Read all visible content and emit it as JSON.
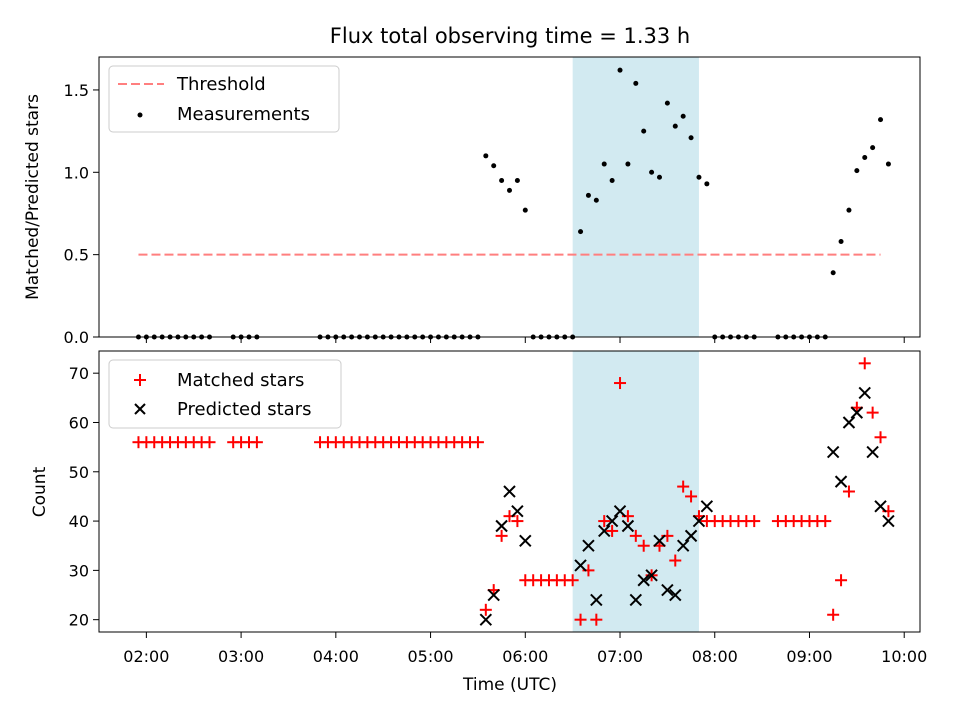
{
  "title": "Flux total observing time = 1.33 h",
  "xlabel": "Time (UTC)",
  "highlight": {
    "start": "06:30",
    "end": "07:50",
    "color": "#add8e6"
  },
  "chart_data": [
    {
      "type": "scatter",
      "ylabel": "Matched/Predicted stars",
      "ylim": [
        0,
        1.7
      ],
      "yticks": [
        "0.0",
        "0.5",
        "1.0",
        "1.5"
      ],
      "legend": {
        "placement": "upper-left",
        "entries": [
          {
            "label": "Threshold",
            "marker": "dashed-line",
            "color": "#ff7f7f"
          },
          {
            "label": "Measurements",
            "marker": "dot",
            "color": "#000000"
          }
        ]
      },
      "threshold": {
        "value": 0.5,
        "x_start": "01:55",
        "x_end": "09:45",
        "color": "#ff7f7f"
      },
      "series": [
        {
          "name": "Measurements",
          "color": "#000000",
          "points": [
            [
              "01:55",
              0
            ],
            [
              "02:00",
              0
            ],
            [
              "02:05",
              0
            ],
            [
              "02:10",
              0
            ],
            [
              "02:15",
              0
            ],
            [
              "02:20",
              0
            ],
            [
              "02:25",
              0
            ],
            [
              "02:30",
              0
            ],
            [
              "02:35",
              0
            ],
            [
              "02:40",
              0
            ],
            [
              "02:55",
              0
            ],
            [
              "03:00",
              0
            ],
            [
              "03:05",
              0
            ],
            [
              "03:10",
              0
            ],
            [
              "03:50",
              0
            ],
            [
              "03:55",
              0
            ],
            [
              "04:00",
              0
            ],
            [
              "04:05",
              0
            ],
            [
              "04:10",
              0
            ],
            [
              "04:15",
              0
            ],
            [
              "04:20",
              0
            ],
            [
              "04:25",
              0
            ],
            [
              "04:30",
              0
            ],
            [
              "04:35",
              0
            ],
            [
              "04:40",
              0
            ],
            [
              "04:45",
              0
            ],
            [
              "04:50",
              0
            ],
            [
              "04:55",
              0
            ],
            [
              "05:00",
              0
            ],
            [
              "05:05",
              0
            ],
            [
              "05:10",
              0
            ],
            [
              "05:15",
              0
            ],
            [
              "05:20",
              0
            ],
            [
              "05:25",
              0
            ],
            [
              "05:30",
              0
            ],
            [
              "05:35",
              1.1
            ],
            [
              "05:40",
              1.04
            ],
            [
              "05:45",
              0.95
            ],
            [
              "05:50",
              0.89
            ],
            [
              "05:55",
              0.95
            ],
            [
              "06:00",
              0.77
            ],
            [
              "06:05",
              0
            ],
            [
              "06:10",
              0
            ],
            [
              "06:15",
              0
            ],
            [
              "06:20",
              0
            ],
            [
              "06:25",
              0
            ],
            [
              "06:30",
              0
            ],
            [
              "06:35",
              0.64
            ],
            [
              "06:40",
              0.86
            ],
            [
              "06:45",
              0.83
            ],
            [
              "06:50",
              1.05
            ],
            [
              "06:55",
              0.95
            ],
            [
              "07:00",
              1.62
            ],
            [
              "07:05",
              1.05
            ],
            [
              "07:10",
              1.54
            ],
            [
              "07:15",
              1.25
            ],
            [
              "07:20",
              1.0
            ],
            [
              "07:25",
              0.97
            ],
            [
              "07:30",
              1.42
            ],
            [
              "07:35",
              1.28
            ],
            [
              "07:40",
              1.34
            ],
            [
              "07:45",
              1.21
            ],
            [
              "07:50",
              0.97
            ],
            [
              "07:55",
              0.93
            ],
            [
              "08:00",
              0
            ],
            [
              "08:05",
              0
            ],
            [
              "08:10",
              0
            ],
            [
              "08:15",
              0
            ],
            [
              "08:20",
              0
            ],
            [
              "08:25",
              0
            ],
            [
              "08:40",
              0
            ],
            [
              "08:45",
              0
            ],
            [
              "08:50",
              0
            ],
            [
              "08:55",
              0
            ],
            [
              "09:00",
              0
            ],
            [
              "09:05",
              0
            ],
            [
              "09:10",
              0
            ],
            [
              "09:15",
              0.39
            ],
            [
              "09:20",
              0.58
            ],
            [
              "09:25",
              0.77
            ],
            [
              "09:30",
              1.01
            ],
            [
              "09:35",
              1.09
            ],
            [
              "09:40",
              1.15
            ],
            [
              "09:45",
              1.32
            ],
            [
              "09:50",
              1.05
            ]
          ]
        }
      ]
    },
    {
      "type": "scatter",
      "ylabel": "Count",
      "ylim": [
        17.5,
        74.5
      ],
      "yticks": [
        "20",
        "30",
        "40",
        "50",
        "60",
        "70"
      ],
      "xticks": [
        "02:00",
        "03:00",
        "04:00",
        "05:00",
        "06:00",
        "07:00",
        "08:00",
        "09:00",
        "10:00"
      ],
      "xlim": [
        "01:30",
        "10:10"
      ],
      "legend": {
        "placement": "upper-left",
        "entries": [
          {
            "label": "Matched stars",
            "marker": "plus",
            "color": "#ff0000"
          },
          {
            "label": "Predicted stars",
            "marker": "x",
            "color": "#000000"
          }
        ]
      },
      "series": [
        {
          "name": "Matched stars",
          "color": "#ff0000",
          "marker": "plus",
          "points": [
            [
              "01:55",
              56
            ],
            [
              "02:00",
              56
            ],
            [
              "02:05",
              56
            ],
            [
              "02:10",
              56
            ],
            [
              "02:15",
              56
            ],
            [
              "02:20",
              56
            ],
            [
              "02:25",
              56
            ],
            [
              "02:30",
              56
            ],
            [
              "02:35",
              56
            ],
            [
              "02:40",
              56
            ],
            [
              "02:55",
              56
            ],
            [
              "03:00",
              56
            ],
            [
              "03:05",
              56
            ],
            [
              "03:10",
              56
            ],
            [
              "03:50",
              56
            ],
            [
              "03:55",
              56
            ],
            [
              "04:00",
              56
            ],
            [
              "04:05",
              56
            ],
            [
              "04:10",
              56
            ],
            [
              "04:15",
              56
            ],
            [
              "04:20",
              56
            ],
            [
              "04:25",
              56
            ],
            [
              "04:30",
              56
            ],
            [
              "04:35",
              56
            ],
            [
              "04:40",
              56
            ],
            [
              "04:45",
              56
            ],
            [
              "04:50",
              56
            ],
            [
              "04:55",
              56
            ],
            [
              "05:00",
              56
            ],
            [
              "05:05",
              56
            ],
            [
              "05:10",
              56
            ],
            [
              "05:15",
              56
            ],
            [
              "05:20",
              56
            ],
            [
              "05:25",
              56
            ],
            [
              "05:30",
              56
            ],
            [
              "05:35",
              22
            ],
            [
              "05:40",
              26
            ],
            [
              "05:45",
              37
            ],
            [
              "05:50",
              41
            ],
            [
              "05:55",
              40
            ],
            [
              "06:00",
              28
            ],
            [
              "06:05",
              28
            ],
            [
              "06:10",
              28
            ],
            [
              "06:15",
              28
            ],
            [
              "06:20",
              28
            ],
            [
              "06:25",
              28
            ],
            [
              "06:30",
              28
            ],
            [
              "06:35",
              20
            ],
            [
              "06:40",
              30
            ],
            [
              "06:45",
              20
            ],
            [
              "06:50",
              40
            ],
            [
              "06:55",
              38
            ],
            [
              "07:00",
              68
            ],
            [
              "07:05",
              41
            ],
            [
              "07:10",
              37
            ],
            [
              "07:15",
              35
            ],
            [
              "07:20",
              29
            ],
            [
              "07:25",
              35
            ],
            [
              "07:30",
              37
            ],
            [
              "07:35",
              32
            ],
            [
              "07:40",
              47
            ],
            [
              "07:45",
              45
            ],
            [
              "07:50",
              41
            ],
            [
              "07:55",
              40
            ],
            [
              "08:00",
              40
            ],
            [
              "08:05",
              40
            ],
            [
              "08:10",
              40
            ],
            [
              "08:15",
              40
            ],
            [
              "08:20",
              40
            ],
            [
              "08:25",
              40
            ],
            [
              "08:40",
              40
            ],
            [
              "08:45",
              40
            ],
            [
              "08:50",
              40
            ],
            [
              "08:55",
              40
            ],
            [
              "09:00",
              40
            ],
            [
              "09:05",
              40
            ],
            [
              "09:10",
              40
            ],
            [
              "09:15",
              21
            ],
            [
              "09:20",
              28
            ],
            [
              "09:25",
              46
            ],
            [
              "09:30",
              63
            ],
            [
              "09:35",
              72
            ],
            [
              "09:40",
              62
            ],
            [
              "09:45",
              57
            ],
            [
              "09:50",
              42
            ]
          ]
        },
        {
          "name": "Predicted stars",
          "color": "#000000",
          "marker": "x",
          "points": [
            [
              "05:35",
              20
            ],
            [
              "05:40",
              25
            ],
            [
              "05:45",
              39
            ],
            [
              "05:50",
              46
            ],
            [
              "05:55",
              42
            ],
            [
              "06:00",
              36
            ],
            [
              "06:35",
              31
            ],
            [
              "06:40",
              35
            ],
            [
              "06:45",
              24
            ],
            [
              "06:50",
              38
            ],
            [
              "06:55",
              40
            ],
            [
              "07:00",
              42
            ],
            [
              "07:05",
              39
            ],
            [
              "07:10",
              24
            ],
            [
              "07:15",
              28
            ],
            [
              "07:20",
              29
            ],
            [
              "07:25",
              36
            ],
            [
              "07:30",
              26
            ],
            [
              "07:35",
              25
            ],
            [
              "07:40",
              35
            ],
            [
              "07:45",
              37
            ],
            [
              "07:50",
              40
            ],
            [
              "07:55",
              43
            ],
            [
              "09:15",
              54
            ],
            [
              "09:20",
              48
            ],
            [
              "09:25",
              60
            ],
            [
              "09:30",
              62
            ],
            [
              "09:35",
              66
            ],
            [
              "09:40",
              54
            ],
            [
              "09:45",
              43
            ],
            [
              "09:50",
              40
            ]
          ]
        }
      ]
    }
  ]
}
